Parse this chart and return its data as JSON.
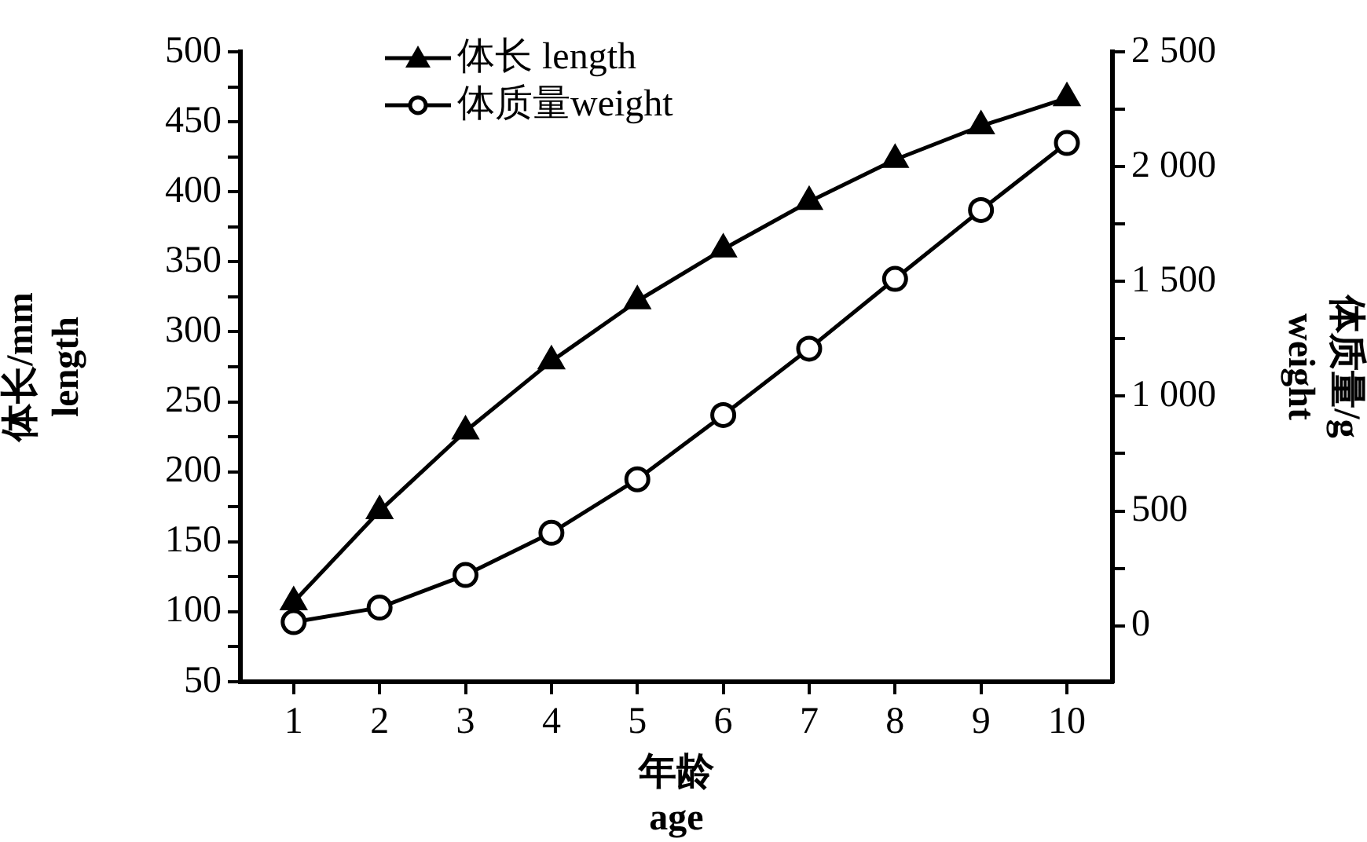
{
  "chart_data": {
    "type": "line",
    "xlabel": "年龄\nage",
    "ylabel": "体长/mm\nlength",
    "y2label": "体质量/g\nweight",
    "x": [
      1,
      2,
      3,
      4,
      5,
      6,
      7,
      8,
      9,
      10
    ],
    "xlim": [
      0.38,
      10.53
    ],
    "xticks": [
      1,
      2,
      3,
      4,
      5,
      6,
      7,
      8,
      9,
      10
    ],
    "ylim": [
      50,
      500
    ],
    "yticks": [
      50,
      {
        "value": 75,
        "label": null
      },
      100,
      {
        "value": 125,
        "label": null
      },
      150,
      {
        "value": 175,
        "label": null
      },
      200,
      {
        "value": 225,
        "label": null
      },
      250,
      {
        "value": 275,
        "label": null
      },
      300,
      {
        "value": 325,
        "label": null
      },
      350,
      {
        "value": 375,
        "label": null
      },
      400,
      {
        "value": 425,
        "label": null
      },
      450,
      {
        "value": 475,
        "label": null
      },
      500
    ],
    "y2lim": [
      -244,
      2500
    ],
    "y2ticks": [
      0,
      {
        "value": 250,
        "label": null
      },
      500,
      {
        "value": 750,
        "label": null
      },
      {
        "value": 1000,
        "label": "1 000"
      },
      {
        "value": 1250,
        "label": null
      },
      {
        "value": 1500,
        "label": "1 500"
      },
      {
        "value": 1750,
        "label": null
      },
      {
        "value": 2000,
        "label": "2 000"
      },
      {
        "value": 2250,
        "label": null
      },
      {
        "value": 2500,
        "label": "2 500"
      }
    ],
    "series": [
      {
        "name": "体长 length",
        "color": "#000000",
        "marker": "triangle",
        "values": [
          107,
          172,
          229,
          279,
          322,
          359,
          393,
          423,
          447,
          467
        ]
      },
      {
        "name": "体质量weight",
        "color": "#000000",
        "marker": "circle",
        "axis": "y2",
        "values": [
          16,
          79,
          221,
          405,
          638,
          918,
          1207,
          1511,
          1811,
          2103
        ]
      }
    ],
    "grid": false,
    "legend": "top left",
    "line_style": "solid"
  }
}
